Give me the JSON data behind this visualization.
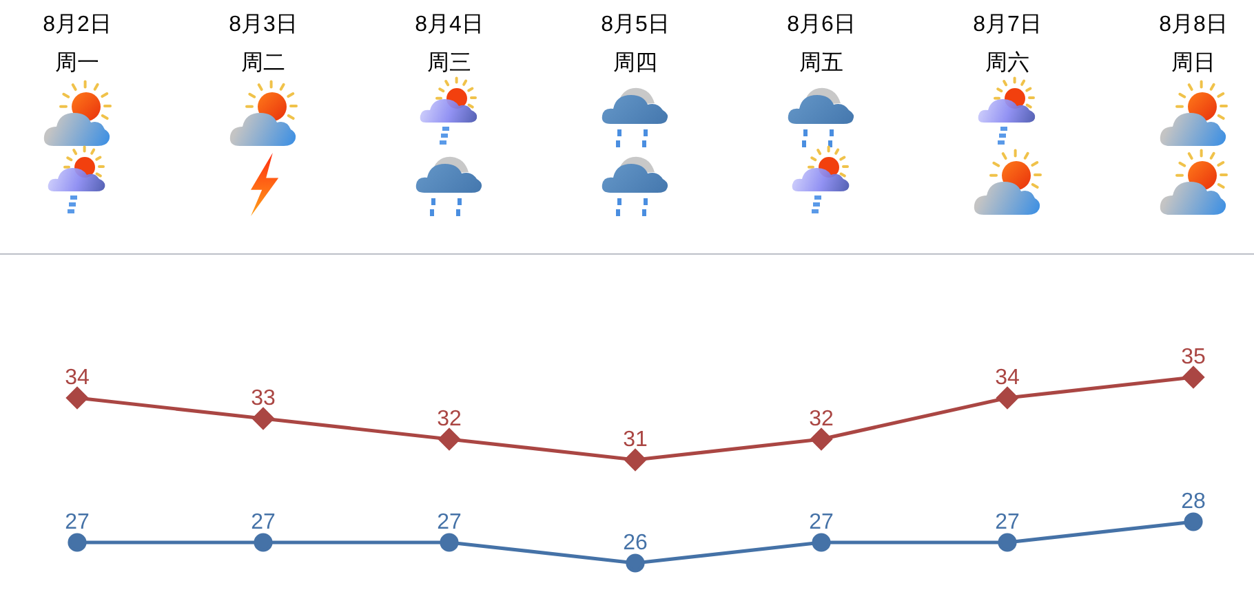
{
  "chart_data": {
    "type": "line",
    "categories": [
      "8月2日周一",
      "8月3日周二",
      "8月4日周三",
      "8月5日周四",
      "8月6日周五",
      "8月7日周六",
      "8月8日周日"
    ],
    "series": [
      {
        "color": "#aa4643",
        "marker": "diamond",
        "values": [
          34,
          33,
          32,
          31,
          32,
          34,
          35
        ]
      },
      {
        "color": "#4572a7",
        "marker": "circle",
        "values": [
          27,
          27,
          27,
          26,
          27,
          27,
          28
        ]
      }
    ],
    "tick_labels": "x",
    "data_labels": true,
    "legend": false,
    "grid": false,
    "line_style": "solid"
  }
}
